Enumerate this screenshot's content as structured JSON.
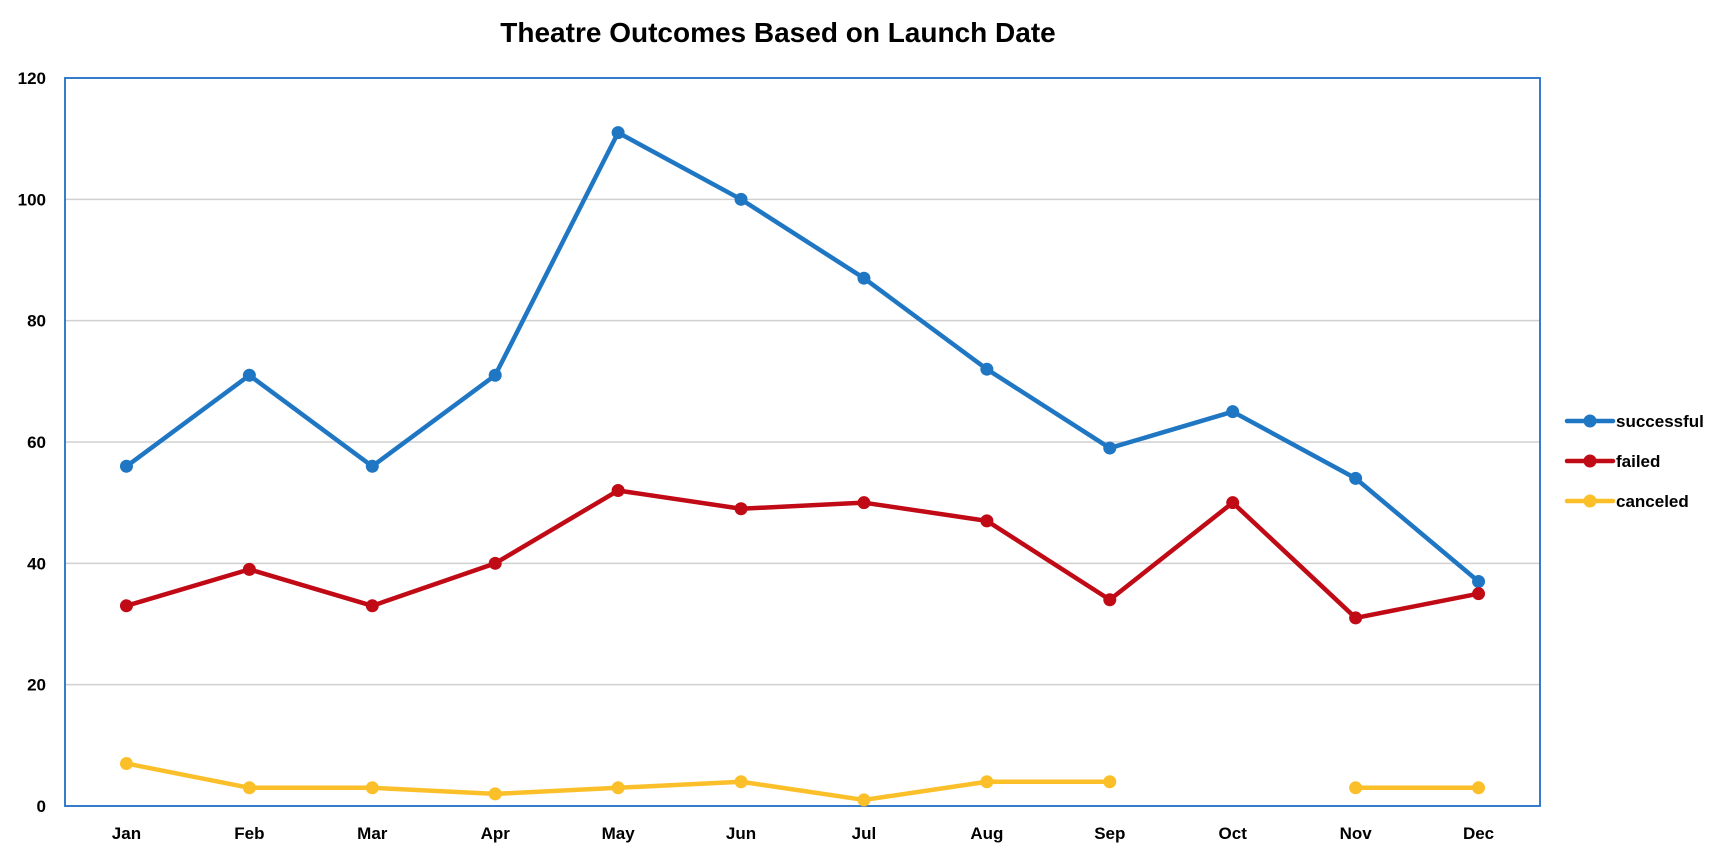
{
  "chart_data": {
    "type": "line",
    "title": "Theatre Outcomes Based on Launch Date",
    "xlabel": "",
    "ylabel": "",
    "categories": [
      "Jan",
      "Feb",
      "Mar",
      "Apr",
      "May",
      "Jun",
      "Jul",
      "Aug",
      "Sep",
      "Oct",
      "Nov",
      "Dec"
    ],
    "ylim": [
      0,
      120
    ],
    "yticks": [
      0,
      20,
      40,
      60,
      80,
      100,
      120
    ],
    "grid": true,
    "legend_position": "right",
    "series": [
      {
        "name": "successful",
        "color": "#1f77c4",
        "values": [
          56,
          71,
          56,
          71,
          111,
          100,
          87,
          72,
          59,
          65,
          54,
          37
        ]
      },
      {
        "name": "failed",
        "color": "#c00a16",
        "values": [
          33,
          39,
          33,
          40,
          52,
          49,
          50,
          47,
          34,
          50,
          31,
          35
        ]
      },
      {
        "name": "canceled",
        "color": "#fbbf2a",
        "values": [
          7,
          3,
          3,
          2,
          3,
          4,
          1,
          4,
          4,
          null,
          3,
          3
        ]
      }
    ]
  }
}
